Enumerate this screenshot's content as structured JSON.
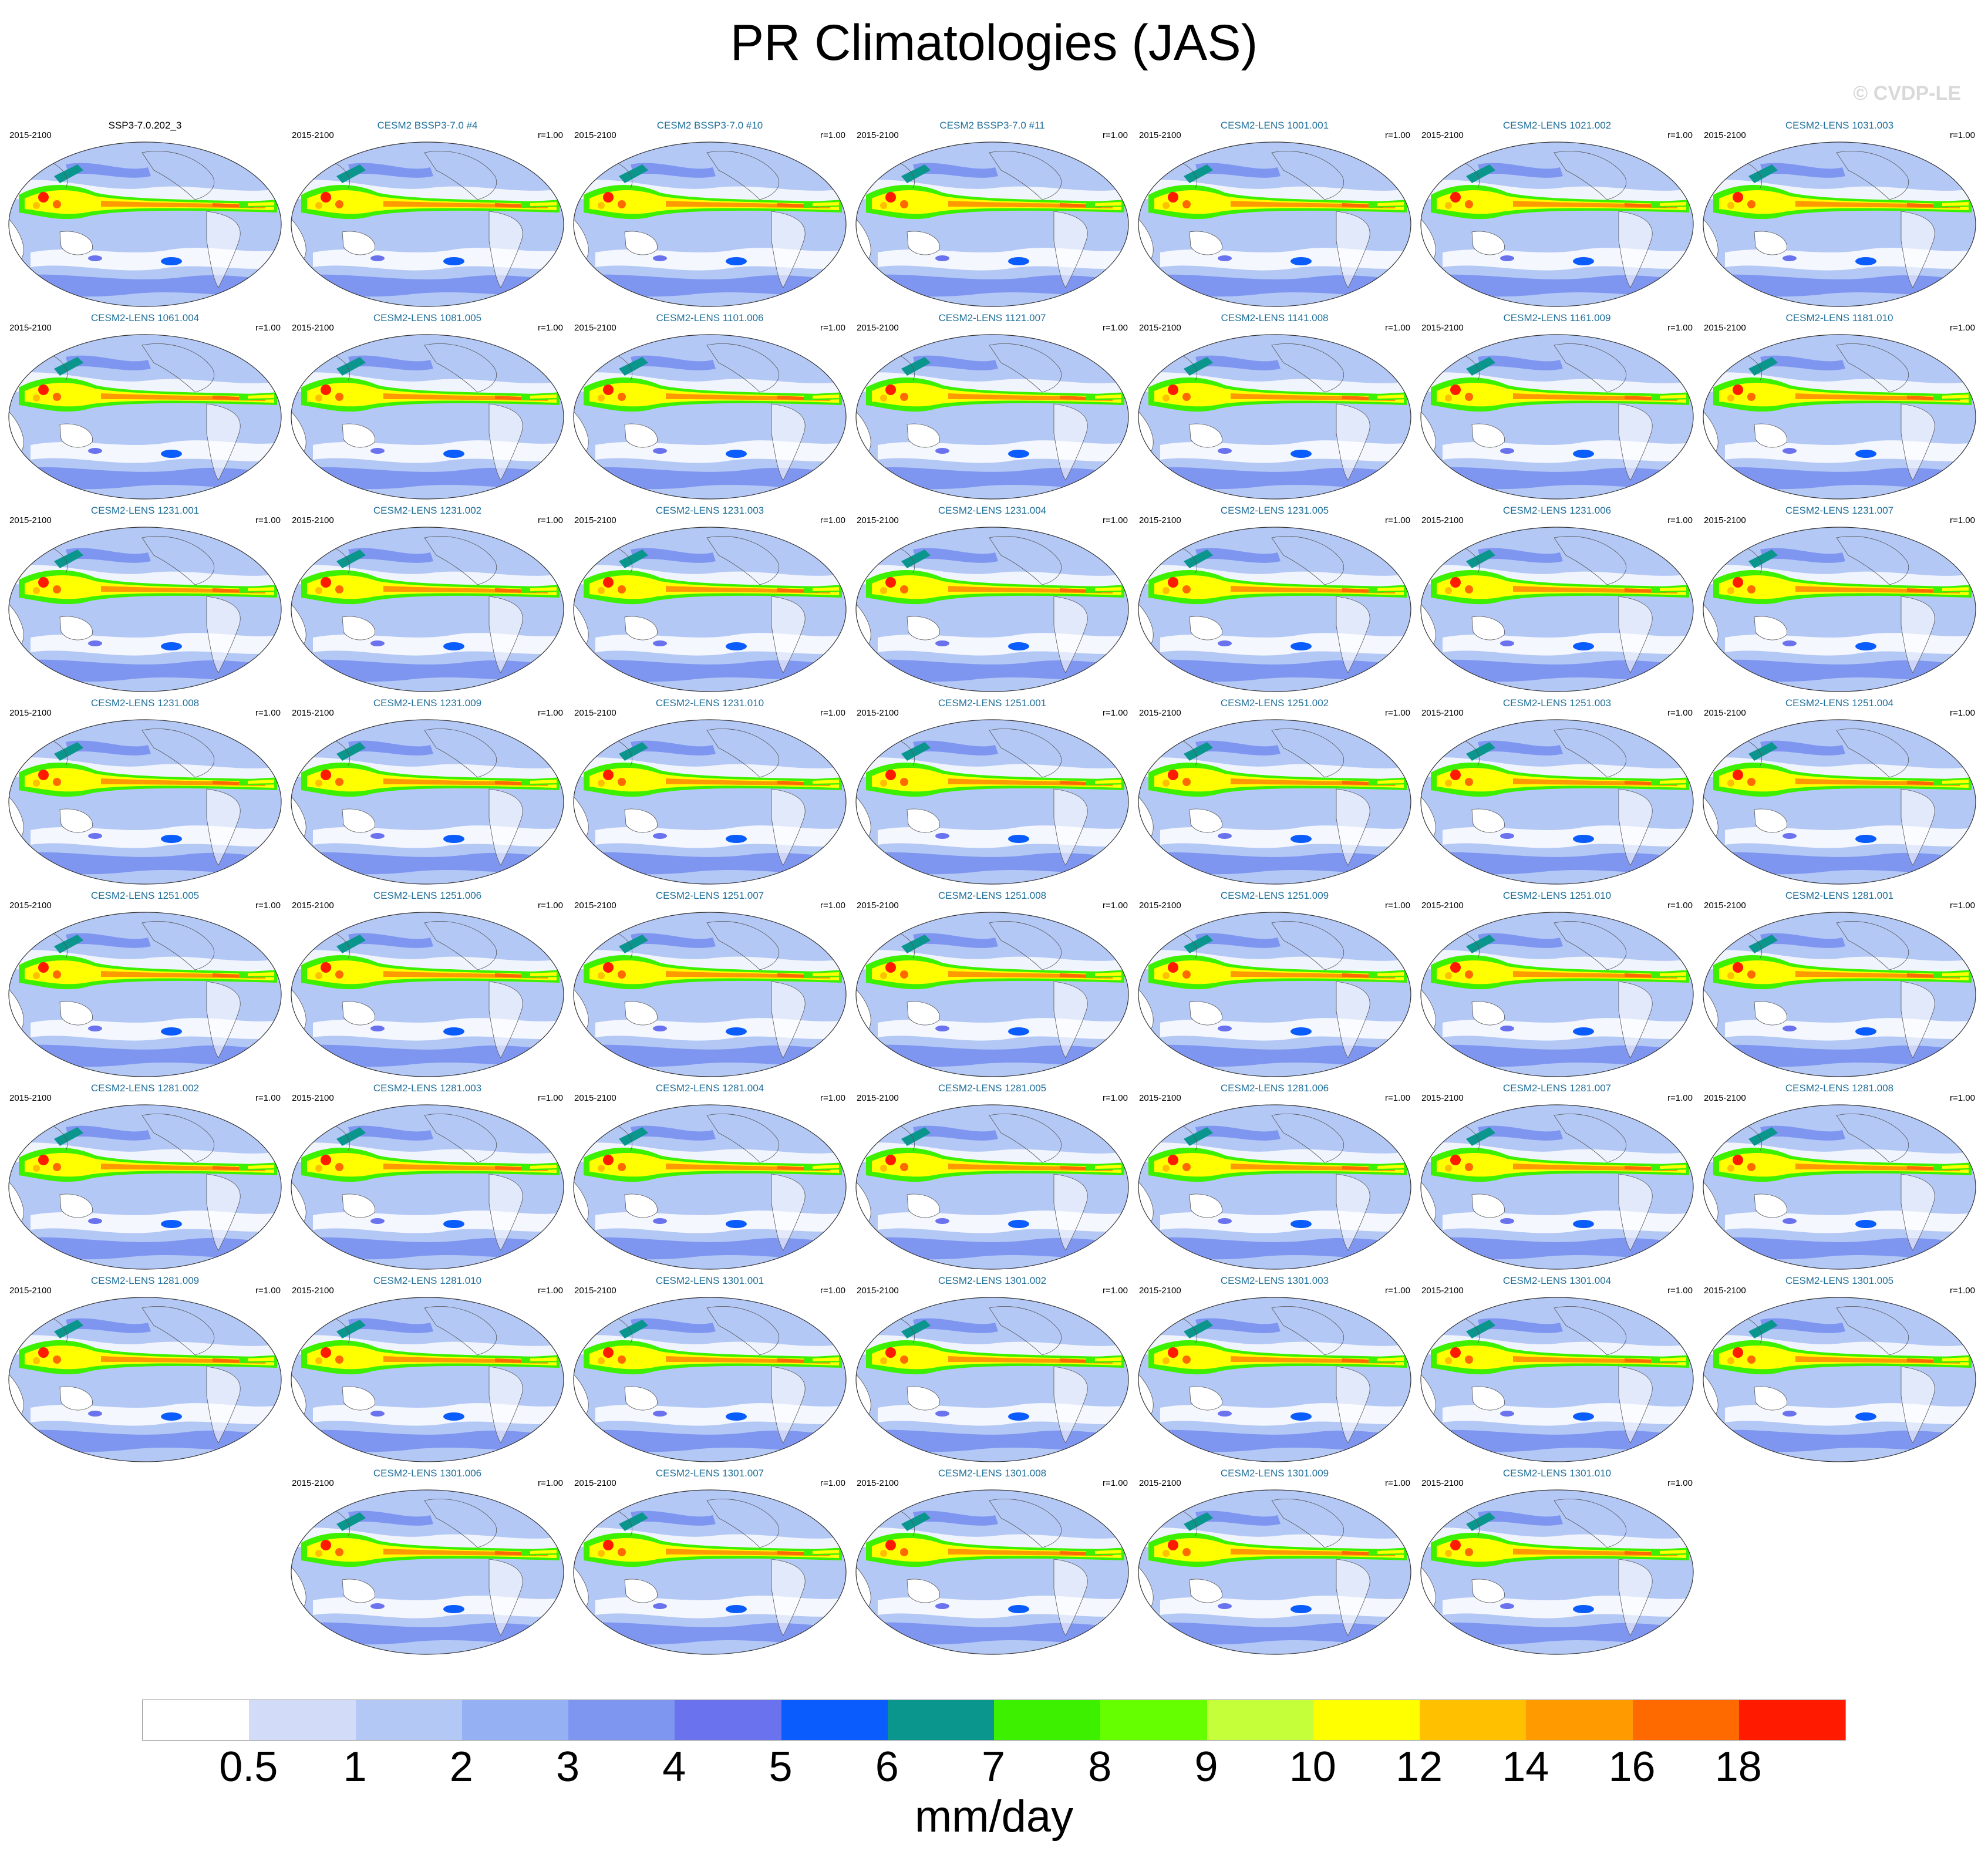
{
  "title": "PR Climatologies (JAS)",
  "credit": "© CVDP-LE",
  "period": "2015-2100",
  "colorbar": {
    "units": "mm/day",
    "levels": [
      "0.5",
      "1",
      "2",
      "3",
      "4",
      "5",
      "6",
      "7",
      "8",
      "9",
      "10",
      "12",
      "14",
      "16",
      "18"
    ],
    "colors": [
      "#ffffff",
      "#d2dcf8",
      "#b4c8f6",
      "#96b0f4",
      "#7f96f0",
      "#6a72ee",
      "#0a5cfc",
      "#0a968c",
      "#3cf000",
      "#66ff00",
      "#c4ff3a",
      "#ffff00",
      "#ffc000",
      "#ff9a00",
      "#ff6a00",
      "#ff1a00"
    ]
  },
  "panels": [
    {
      "name": "SSP3-7.0.202_3",
      "corr": "",
      "obs": true
    },
    {
      "name": "CESM2 BSSP3-7.0 #4",
      "corr": "r=1.00"
    },
    {
      "name": "CESM2 BSSP3-7.0 #10",
      "corr": "r=1.00"
    },
    {
      "name": "CESM2 BSSP3-7.0 #11",
      "corr": "r=1.00"
    },
    {
      "name": "CESM2-LENS 1001.001",
      "corr": "r=1.00"
    },
    {
      "name": "CESM2-LENS 1021.002",
      "corr": "r=1.00"
    },
    {
      "name": "CESM2-LENS 1031.003",
      "corr": "r=1.00"
    },
    {
      "name": "CESM2-LENS 1061.004",
      "corr": "r=1.00"
    },
    {
      "name": "CESM2-LENS 1081.005",
      "corr": "r=1.00"
    },
    {
      "name": "CESM2-LENS 1101.006",
      "corr": "r=1.00"
    },
    {
      "name": "CESM2-LENS 1121.007",
      "corr": "r=1.00"
    },
    {
      "name": "CESM2-LENS 1141.008",
      "corr": "r=1.00"
    },
    {
      "name": "CESM2-LENS 1161.009",
      "corr": "r=1.00"
    },
    {
      "name": "CESM2-LENS 1181.010",
      "corr": "r=1.00"
    },
    {
      "name": "CESM2-LENS 1231.001",
      "corr": "r=1.00"
    },
    {
      "name": "CESM2-LENS 1231.002",
      "corr": "r=1.00"
    },
    {
      "name": "CESM2-LENS 1231.003",
      "corr": "r=1.00"
    },
    {
      "name": "CESM2-LENS 1231.004",
      "corr": "r=1.00"
    },
    {
      "name": "CESM2-LENS 1231.005",
      "corr": "r=1.00"
    },
    {
      "name": "CESM2-LENS 1231.006",
      "corr": "r=1.00"
    },
    {
      "name": "CESM2-LENS 1231.007",
      "corr": "r=1.00"
    },
    {
      "name": "CESM2-LENS 1231.008",
      "corr": "r=1.00"
    },
    {
      "name": "CESM2-LENS 1231.009",
      "corr": "r=1.00"
    },
    {
      "name": "CESM2-LENS 1231.010",
      "corr": "r=1.00"
    },
    {
      "name": "CESM2-LENS 1251.001",
      "corr": "r=1.00"
    },
    {
      "name": "CESM2-LENS 1251.002",
      "corr": "r=1.00"
    },
    {
      "name": "CESM2-LENS 1251.003",
      "corr": "r=1.00"
    },
    {
      "name": "CESM2-LENS 1251.004",
      "corr": "r=1.00"
    },
    {
      "name": "CESM2-LENS 1251.005",
      "corr": "r=1.00"
    },
    {
      "name": "CESM2-LENS 1251.006",
      "corr": "r=1.00"
    },
    {
      "name": "CESM2-LENS 1251.007",
      "corr": "r=1.00"
    },
    {
      "name": "CESM2-LENS 1251.008",
      "corr": "r=1.00"
    },
    {
      "name": "CESM2-LENS 1251.009",
      "corr": "r=1.00"
    },
    {
      "name": "CESM2-LENS 1251.010",
      "corr": "r=1.00"
    },
    {
      "name": "CESM2-LENS 1281.001",
      "corr": "r=1.00"
    },
    {
      "name": "CESM2-LENS 1281.002",
      "corr": "r=1.00"
    },
    {
      "name": "CESM2-LENS 1281.003",
      "corr": "r=1.00"
    },
    {
      "name": "CESM2-LENS 1281.004",
      "corr": "r=1.00"
    },
    {
      "name": "CESM2-LENS 1281.005",
      "corr": "r=1.00"
    },
    {
      "name": "CESM2-LENS 1281.006",
      "corr": "r=1.00"
    },
    {
      "name": "CESM2-LENS 1281.007",
      "corr": "r=1.00"
    },
    {
      "name": "CESM2-LENS 1281.008",
      "corr": "r=1.00"
    },
    {
      "name": "CESM2-LENS 1281.009",
      "corr": "r=1.00"
    },
    {
      "name": "CESM2-LENS 1281.010",
      "corr": "r=1.00"
    },
    {
      "name": "CESM2-LENS 1301.001",
      "corr": "r=1.00"
    },
    {
      "name": "CESM2-LENS 1301.002",
      "corr": "r=1.00"
    },
    {
      "name": "CESM2-LENS 1301.003",
      "corr": "r=1.00"
    },
    {
      "name": "CESM2-LENS 1301.004",
      "corr": "r=1.00"
    },
    {
      "name": "CESM2-LENS 1301.005",
      "corr": "r=1.00"
    },
    {
      "name": "CESM2-LENS 1301.006",
      "corr": "r=1.00"
    },
    {
      "name": "CESM2-LENS 1301.007",
      "corr": "r=1.00"
    },
    {
      "name": "CESM2-LENS 1301.008",
      "corr": "r=1.00"
    },
    {
      "name": "CESM2-LENS 1301.009",
      "corr": "r=1.00"
    },
    {
      "name": "CESM2-LENS 1301.010",
      "corr": "r=1.00"
    }
  ]
}
